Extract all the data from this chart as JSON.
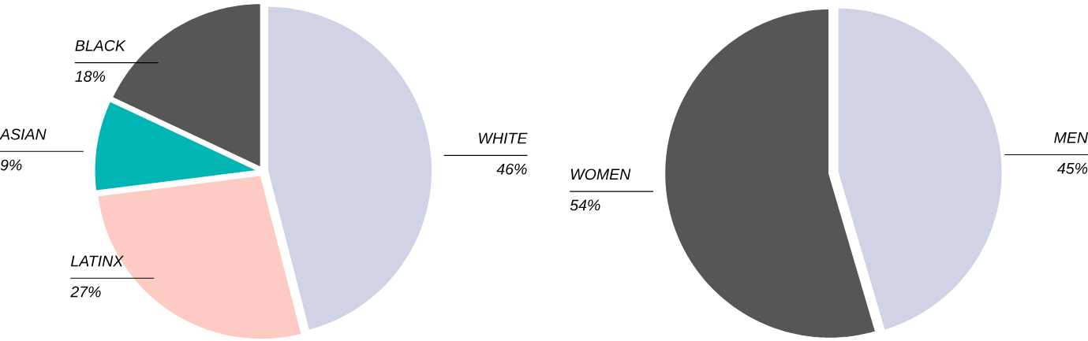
{
  "chart_data": [
    {
      "type": "pie",
      "categories": [
        "WHITE",
        "LATINX",
        "ASIAN",
        "BLACK"
      ],
      "values": [
        46,
        27,
        9,
        18
      ],
      "value_labels": [
        "46%",
        "27%",
        "9%",
        "18%"
      ],
      "colors": [
        "#d0d3e5",
        "#fdcbc4",
        "#00b5b3",
        "#575556"
      ]
    },
    {
      "type": "pie",
      "categories": [
        "MEN",
        "WOMEN"
      ],
      "values": [
        45,
        54
      ],
      "value_labels": [
        "45%",
        "54%"
      ],
      "colors": [
        "#d0d3e5",
        "#575556"
      ]
    }
  ]
}
